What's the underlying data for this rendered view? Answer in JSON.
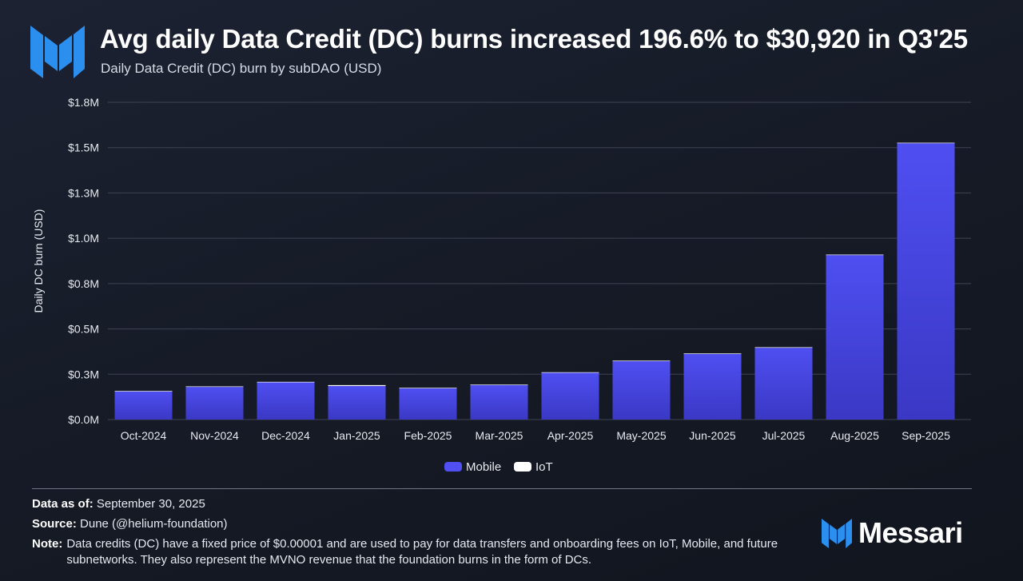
{
  "header": {
    "title": "Avg daily Data Credit (DC) burns increased 196.6% to $30,920 in Q3'25",
    "subtitle": "Daily Data Credit (DC) burn by subDAO (USD)"
  },
  "colors": {
    "mobile": "#4f4ff2",
    "iot": "#ffffff",
    "grid": "#3e4352",
    "axis_text": "#e8eaf0"
  },
  "chart_data": {
    "type": "bar",
    "stacked": true,
    "categories": [
      "Oct-2024",
      "Nov-2024",
      "Dec-2024",
      "Jan-2025",
      "Feb-2025",
      "Mar-2025",
      "Apr-2025",
      "May-2025",
      "Jun-2025",
      "Jul-2025",
      "Aug-2025",
      "Sep-2025"
    ],
    "series": [
      {
        "name": "Mobile",
        "color": "#4f4ff2",
        "values": [
          155000,
          180000,
          205000,
          185000,
          172000,
          190000,
          258000,
          322000,
          362000,
          396000,
          907000,
          1524000
        ]
      },
      {
        "name": "IoT",
        "color": "#ffffff",
        "values": [
          3000,
          3000,
          3000,
          5000,
          3000,
          3000,
          3000,
          3000,
          3000,
          3000,
          3000,
          3000
        ]
      }
    ],
    "ylabel": "Daily DC burn (USD)",
    "xlabel": "",
    "ylim": [
      0,
      1750000
    ],
    "yticks": [
      0,
      250000,
      500000,
      750000,
      1000000,
      1250000,
      1500000,
      1750000
    ],
    "ytick_labels": [
      "$0.0M",
      "$0.3M",
      "$0.5M",
      "$0.8M",
      "$1.0M",
      "$1.3M",
      "$1.5M",
      "$1.8M"
    ],
    "grid": true,
    "legend_position": "bottom-center",
    "legend": [
      "Mobile",
      "IoT"
    ]
  },
  "footer": {
    "data_as_of_label": "Data as of:",
    "data_as_of_value": "September 30, 2025",
    "source_label": "Source:",
    "source_value": "Dune (@helium-foundation)",
    "note_label": "Note:",
    "note_value": "Data credits (DC) have a fixed price of $0.00001 and are used to pay for data transfers and onboarding fees on IoT, Mobile, and future subnetworks. They also represent the MVNO revenue that the foundation burns in the form of DCs."
  },
  "brand": {
    "name": "Messari"
  }
}
